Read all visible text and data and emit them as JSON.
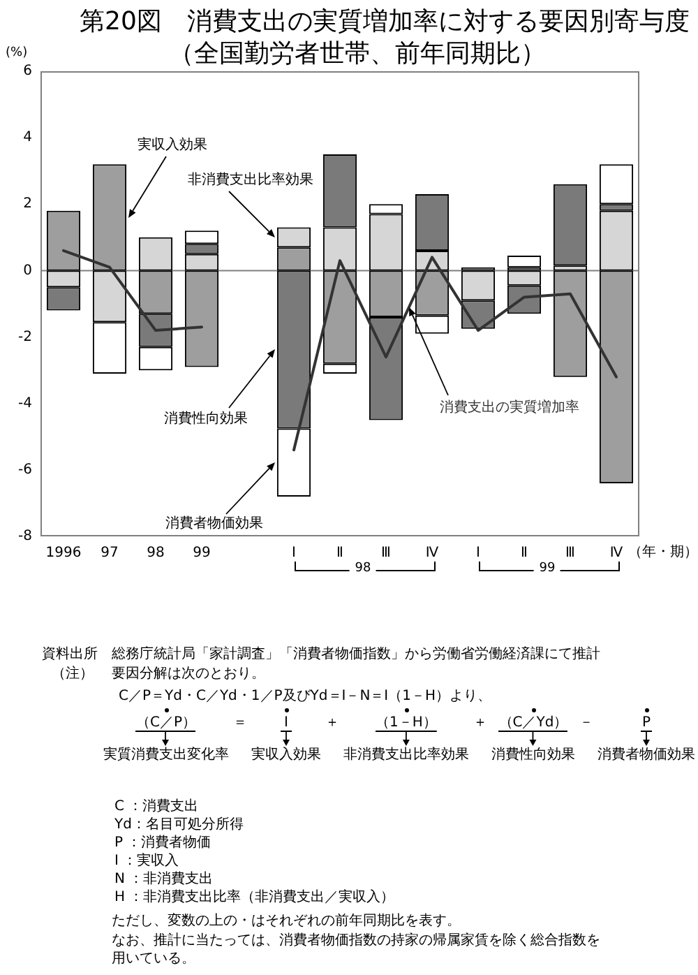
{
  "chart_data": {
    "type": "bar",
    "title": "第20図　消費支出の実質増加率に対する要因別寄与度",
    "subtitle": "（全国勤労者世帯、前年同期比）",
    "ylabel": "(%)",
    "xlabel": "（年・期）",
    "categories": [
      "1996",
      "97",
      "98",
      "99",
      null,
      "Ⅰ",
      "Ⅱ",
      "Ⅲ",
      "Ⅳ",
      "Ⅰ",
      "Ⅱ",
      "Ⅲ",
      "Ⅳ"
    ],
    "stacked": true,
    "series": [
      {
        "name": "実収入効果",
        "color": "#9e9e9e",
        "values": [
          1.8,
          3.2,
          -1.3,
          -2.9,
          null,
          0.7,
          -2.8,
          -1.4,
          -1.35,
          0.1,
          0.1,
          -3.2,
          -6.4
        ]
      },
      {
        "name": "非消費支出比率効果",
        "color": "#d6d6d6",
        "values": [
          -0.5,
          -1.55,
          1.0,
          0.5,
          null,
          0.6,
          1.3,
          1.7,
          0.6,
          -0.9,
          -0.45,
          0.15,
          1.8
        ]
      },
      {
        "name": "消費性向効果",
        "color": "#7a7a7a",
        "values": [
          -0.7,
          null,
          -1.0,
          0.3,
          null,
          -4.75,
          2.2,
          -3.1,
          1.7,
          -0.85,
          -0.85,
          2.45,
          0.2
        ]
      },
      {
        "name": "消費者物価効果",
        "color": "#ffffff",
        "values": [
          null,
          -1.55,
          -0.7,
          0.4,
          null,
          -2.05,
          -0.3,
          0.3,
          -0.55,
          null,
          0.35,
          null,
          1.2
        ]
      },
      {
        "name": "消費支出の実質増加率",
        "type": "line",
        "color": "#333333",
        "values": [
          0.6,
          0.1,
          -1.8,
          -1.7,
          null,
          -5.4,
          0.3,
          -2.6,
          0.4,
          -1.8,
          -0.8,
          -0.7,
          -3.2
        ]
      }
    ],
    "ylim": [
      -8,
      6
    ],
    "yticks": [
      -8,
      -6,
      -4,
      -2,
      0,
      2,
      4,
      6
    ],
    "grid": false,
    "legend": false,
    "marker": "none",
    "ref_lines": [
      {
        "axis": "y",
        "value": 0,
        "color": "#808080"
      }
    ],
    "annotations": [
      "98",
      "99",
      "資料出所",
      "総務庁統計局「家計調査」「消費者物価指数」から労働省労働経済課にて推計",
      "（注）",
      "要因分解は次のとおり。",
      "C／P＝Yd・C／Yd・1／P及びYd＝I－N＝I（1－H）より、",
      "（C／P）",
      "＝",
      "I",
      "＋",
      "（1－H）",
      "＋",
      "（C／Yd）",
      "－",
      "P",
      "実質消費支出変化率",
      "実収入効果",
      "非消費支出比率効果",
      "消費性向効果",
      "消費者物価効果",
      "C ：消費支出",
      "Yd：名目可処分所得",
      "P ：消費者物価",
      "I ：実収入",
      "N ：非消費支出",
      "H ：非消費支出比率（非消費支出／実収入）",
      "ただし、変数の上の・はそれぞれの前年同期比を表す。",
      "なお、推計に当たっては、消費者物価指数の持家の帰属家賃を除く総合指数を用いている。"
    ]
  }
}
